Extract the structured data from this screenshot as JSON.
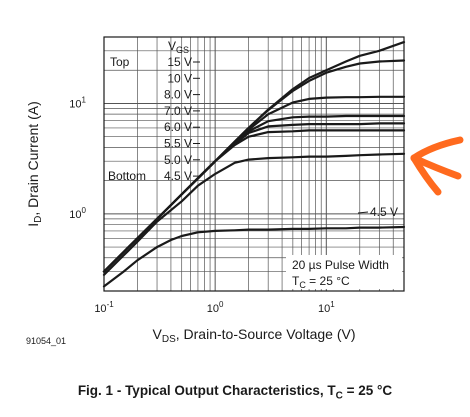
{
  "figure": {
    "id": "91054_01",
    "caption": "Fig. 1 - Typical Output Characteristics, T C = 25 °C"
  },
  "chart_data": {
    "type": "line",
    "xscale": "log",
    "yscale": "log",
    "xlim": [
      0.1,
      50
    ],
    "ylim": [
      0.2,
      40
    ],
    "x_ticks": [
      {
        "value": 0.1,
        "base": "10",
        "exp": "-1"
      },
      {
        "value": 1,
        "base": "10",
        "exp": "0"
      },
      {
        "value": 10,
        "base": "10",
        "exp": "1"
      }
    ],
    "y_ticks": [
      {
        "value": 1,
        "base": "10",
        "exp": "0"
      },
      {
        "value": 10,
        "base": "10",
        "exp": "1"
      }
    ],
    "xlabel": {
      "pre": "V",
      "sub": "DS",
      "post": ", Drain-to-Source Voltage (V)"
    },
    "ylabel": {
      "pre": "I",
      "sub": "D",
      "post": ", Drain Current (A)"
    },
    "legend": {
      "header_pre": "V",
      "header_sub": "GS",
      "top_label": "Top",
      "bottom_label": "Bottom",
      "entries": [
        "15 V",
        "10 V",
        "8.0 V",
        "7.0 V",
        "6.0 V",
        "5.5 V",
        "5.0 V",
        "4.5 V"
      ]
    },
    "annotations": {
      "curve_label": "4.5 V",
      "pulse_width": "20 µs Pulse Width",
      "temp_pre": "T",
      "temp_sub": "C",
      "temp_post": " = 25 °C"
    },
    "grid": true,
    "series": [
      {
        "x": [
          0.1,
          0.15,
          0.2,
          0.3,
          0.5,
          0.7,
          1,
          1.5,
          2,
          3,
          5,
          7,
          10,
          15,
          20,
          30,
          50
        ],
        "y": [
          0.3,
          0.45,
          0.6,
          0.9,
          1.5,
          2.1,
          3,
          4.5,
          6,
          8.8,
          13.5,
          17,
          20,
          24,
          27,
          30,
          36
        ]
      },
      {
        "x": [
          0.1,
          0.15,
          0.2,
          0.3,
          0.5,
          0.7,
          1,
          1.5,
          2,
          3,
          5,
          7,
          10,
          15,
          20,
          30,
          50
        ],
        "y": [
          0.3,
          0.45,
          0.6,
          0.9,
          1.5,
          2.1,
          3,
          4.5,
          6,
          8.7,
          13,
          16,
          19,
          21.5,
          23,
          24,
          24.5
        ]
      },
      {
        "x": [
          0.1,
          0.15,
          0.2,
          0.3,
          0.5,
          0.7,
          1,
          1.5,
          2,
          3,
          5,
          7,
          10,
          15,
          20,
          30,
          50
        ],
        "y": [
          0.3,
          0.45,
          0.6,
          0.9,
          1.5,
          2.1,
          3,
          4.4,
          5.8,
          8,
          10.2,
          11,
          11.3,
          11.4,
          11.4,
          11.5,
          11.5
        ]
      },
      {
        "x": [
          0.1,
          0.15,
          0.2,
          0.3,
          0.5,
          0.7,
          1,
          1.5,
          2,
          3,
          5,
          7,
          10,
          15,
          20,
          30,
          50
        ],
        "y": [
          0.3,
          0.45,
          0.6,
          0.9,
          1.5,
          2.1,
          3,
          4.4,
          5.6,
          6.9,
          7.5,
          7.6,
          7.6,
          7.7,
          7.7,
          7.7,
          7.7
        ]
      },
      {
        "x": [
          0.1,
          0.15,
          0.2,
          0.3,
          0.5,
          0.7,
          1,
          1.5,
          2,
          3,
          5,
          7,
          10,
          15,
          20,
          30,
          50
        ],
        "y": [
          0.3,
          0.45,
          0.6,
          0.9,
          1.5,
          2.1,
          3,
          4.3,
          5.4,
          6.2,
          6.4,
          6.5,
          6.5,
          6.5,
          6.5,
          6.6,
          6.6
        ]
      },
      {
        "x": [
          0.1,
          0.15,
          0.2,
          0.3,
          0.5,
          0.7,
          1,
          1.5,
          2,
          3,
          5,
          7,
          10,
          15,
          20,
          30,
          50
        ],
        "y": [
          0.3,
          0.45,
          0.6,
          0.9,
          1.5,
          2.1,
          3,
          4.2,
          5,
          5.5,
          5.6,
          5.7,
          5.7,
          5.7,
          5.7,
          5.7,
          5.7
        ]
      },
      {
        "x": [
          0.1,
          0.15,
          0.2,
          0.3,
          0.5,
          0.7,
          1,
          1.5,
          2,
          3,
          5,
          7,
          10,
          15,
          20,
          30,
          50
        ],
        "y": [
          0.28,
          0.42,
          0.56,
          0.85,
          1.3,
          1.8,
          2.3,
          2.9,
          3.1,
          3.2,
          3.25,
          3.3,
          3.3,
          3.35,
          3.4,
          3.45,
          3.5
        ]
      },
      {
        "x": [
          0.1,
          0.15,
          0.2,
          0.3,
          0.4,
          0.5,
          0.7,
          1,
          1.5,
          2,
          3,
          5,
          7,
          10,
          15,
          20,
          30,
          50
        ],
        "y": [
          0.22,
          0.3,
          0.38,
          0.5,
          0.58,
          0.63,
          0.68,
          0.7,
          0.71,
          0.72,
          0.72,
          0.73,
          0.73,
          0.74,
          0.74,
          0.75,
          0.75,
          0.76
        ]
      }
    ]
  },
  "colors": {
    "ink": "#1a1a1a",
    "grid": "#555555",
    "arrow": "#ff6a1e"
  }
}
